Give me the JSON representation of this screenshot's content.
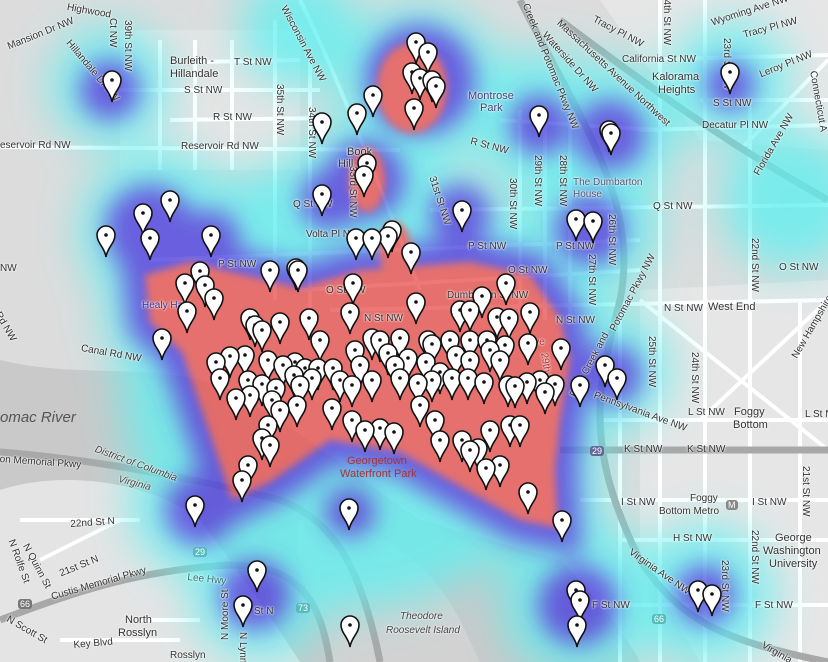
{
  "map": {
    "heat_colors": {
      "low": "#5ef0f0",
      "mid": "#4a3ee0",
      "high": "#e8534f"
    },
    "marker_icon": "map-pin-icon",
    "marker_color": "#ffffff",
    "labels": {
      "highwood": "Highwood",
      "highwood_ct": "Ct NW",
      "mansion_dr": "Mansion Dr NW",
      "hillandale_dr": "Hillandale Dr NW",
      "st39": "39th St NW",
      "burleith1": "Burleith -",
      "burleith2": "Hillandale",
      "t_st": "T St NW",
      "s_st_w": "S St NW",
      "r_st_w": "R St NW",
      "reservoir1": "eservoir Rd NW",
      "reservoir2": "Reservoir Rd NW",
      "st35": "35th St NW",
      "st34": "34th St NW",
      "wisconsin": "Wisconsin Ave NW",
      "book1": "Book",
      "book2": "Hill",
      "st33": "33rd St NW",
      "q_st_w": "Q St NW",
      "volta": "Volta Pl NW",
      "p_st_w": "P St NW",
      "o_st_w": "O St NW",
      "n_st_w": "N St NW",
      "healy": "Healy Hall",
      "canal": "Canal Rd NW",
      "river": "omac River",
      "waterfront1": "Georgetown",
      "waterfront2": "Waterfront Park",
      "dumbarton_st": "Dumbarton St NW",
      "montrose1": "Montrose",
      "montrose2": "Park",
      "r_st_e": "R St NW",
      "st31": "31st St NW",
      "st30": "30th St NW",
      "st29": "29th St NW",
      "st28": "28th St NW",
      "dumbarton_house1": "The Dumbarton",
      "dumbarton_house2": "House",
      "q_st_e": "Q St NW",
      "p_st_m": "P St NW",
      "p_st_e": "P St NW",
      "o_st_m": "O St NW",
      "o_st_e": "O St NW",
      "n_st_m": "N St NW",
      "n_st_e": "N St NW",
      "west_end": "West End",
      "st26": "26th St NW",
      "st27": "27th St NW",
      "potomac_pkwy": "Potomac Pkwy NW",
      "rock_creek": "Creek and Potomac Pkwy NW",
      "waterside": "Waterside Dr NW",
      "mass_ave": "Massachusetts Avenue Northwest",
      "tracy1": "Tracy Pl NW",
      "tracy2": "Tracy Pl NW",
      "wyoming": "Wyoming Ave NW",
      "st24_n": "24th St NW",
      "st23_n": "23rd St NW",
      "california": "California St NW",
      "kalorama1": "Kalorama",
      "kalorama2": "Heights",
      "s_st_e": "S St NW",
      "leroy": "Leroy Pl NW",
      "decatur": "Decatur Pl NW",
      "florida": "Florida Ave NW",
      "connecticut": "Connecticut A",
      "st22_n": "22nd St NW",
      "olive": "Olive",
      "st29_s": "29th St",
      "rock_creek_s": "Rock Creek and",
      "st25": "25th St NW",
      "st24_s": "24th St NW",
      "new_hampshire": "New Hampshire",
      "penn": "Pennsylvania Ave NW",
      "l_st1": "L St NW",
      "l_st2": "L St NW",
      "foggy1": "Foggy",
      "foggy2": "Bottom",
      "k_st1": "K St NW",
      "k_st2": "K St NW",
      "i_st1": "I St NW",
      "metro1": "Foggy",
      "metro2": "Bottom Metro",
      "metro_icon": "M",
      "i_st2": "I St NW",
      "h_st": "H St NW",
      "gwu1": "George",
      "gwu2": "Washington",
      "gwu3": "University",
      "st21": "21st St NW",
      "st22_s": "22nd St NW",
      "st23_s": "23rd St NW",
      "f_st1": "F St NW",
      "f_st2": "F St NW",
      "virginia_ave1": "Virginia Ave NW",
      "virginia_ave2": "Virginia",
      "gw_pkwy": "on Memorial Pkwy",
      "dc": "District of Columbia",
      "va": "Virginia",
      "st22n": "22nd St N",
      "st21n": "21st St N",
      "rolfe": "N Rolfe St",
      "quinn": "N Quinn St",
      "custis": "Custis Memorial Pkwy",
      "lee_hwy": "Lee Hwy",
      "rosslyn1": "North",
      "rosslyn2": "Rosslyn",
      "key_blvd": "Key Blvd",
      "scott": "N Scott St",
      "moore": "N Moore St",
      "lynn": "N Lynn",
      "st_n": "St N",
      "theodore1": "Theodore",
      "theodore2": "Roosevelt Island",
      "rosslyn_metro": "Rosslyn",
      "rd_w": "Rd NW",
      "nw_w": "NW"
    },
    "shields": {
      "us29a": "29",
      "us29b": "29",
      "i66a": "66",
      "i66b": "66",
      "va73": "73"
    }
  }
}
